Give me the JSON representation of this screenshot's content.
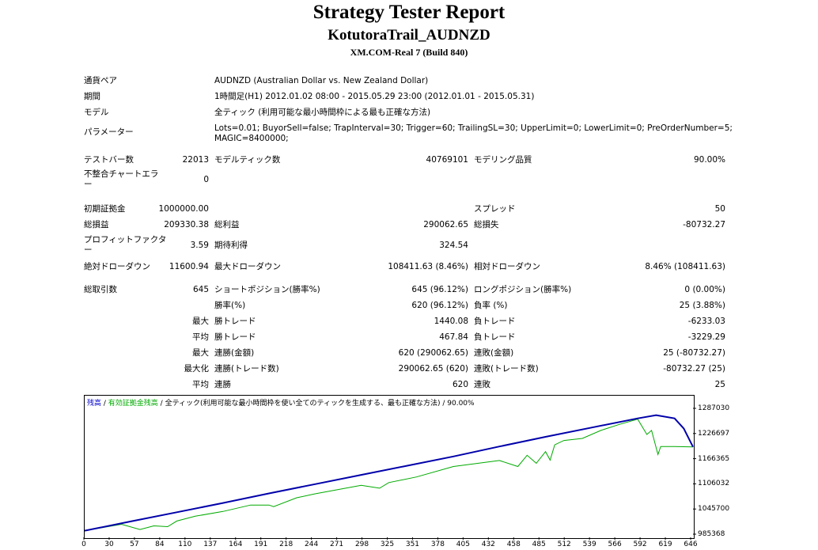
{
  "header": {
    "title": "Strategy Tester Report",
    "ea_name": "KotutoraTrail_AUDNZD",
    "server": "XM.COM-Real 7 (Build 840)"
  },
  "settings": {
    "symbol_label": "通貨ペア",
    "symbol_value": "AUDNZD (Australian Dollar vs. New Zealand Dollar)",
    "period_label": "期間",
    "period_value": "1時間足(H1) 2012.01.02 08:00 - 2015.05.29 23:00 (2012.01.01 - 2015.05.31)",
    "model_label": "モデル",
    "model_value": "全ティック (利用可能な最小時間枠による最も正確な方法)",
    "params_label": "パラメーター",
    "params_line1": "Lots=0.01; BuyorSell=false; TrapInterval=30; Trigger=60; TrailingSL=30; UpperLimit=0; LowerLimit=0; PreOrderNumber=5;",
    "params_line2": "MAGIC=8400000;"
  },
  "stats": {
    "bars_label": "テストバー数",
    "bars_value": "22013",
    "ticks_label": "モデルティック数",
    "ticks_value": "40769101",
    "quality_label": "モデリング品質",
    "quality_value": "90.00%",
    "mismatch_label1": "不整合チャートエラ",
    "mismatch_label2": "ー",
    "mismatch_value": "0",
    "deposit_label": "初期証拠金",
    "deposit_value": "1000000.00",
    "spread_label": "スプレッド",
    "spread_value": "50",
    "net_label": "総損益",
    "net_value": "209330.38",
    "gross_profit_label": "総利益",
    "gross_profit_value": "290062.65",
    "gross_loss_label": "総損失",
    "gross_loss_value": "-80732.27",
    "pf_label1": "プロフィットファクタ",
    "pf_label2": "ー",
    "pf_value": "3.59",
    "expected_label": "期待利得",
    "expected_value": "324.54",
    "abs_dd_label": "絶対ドローダウン",
    "abs_dd_value": "11600.94",
    "max_dd_label": "最大ドローダウン",
    "max_dd_value": "108411.63 (8.46%)",
    "rel_dd_label": "相対ドローダウン",
    "rel_dd_value": "8.46% (108411.63)",
    "trades_label": "総取引数",
    "trades_value": "645",
    "short_label": "ショートポジション(勝率%)",
    "short_value": "645 (96.12%)",
    "long_label": "ロングポジション(勝率%)",
    "long_value": "0 (0.00%)",
    "win_rate_label": "勝率(%)",
    "win_rate_value": "620 (96.12%)",
    "loss_rate_label": "負率 (%)",
    "loss_rate_value": "25 (3.88%)",
    "max_label": "最大",
    "largest_win_label": "勝トレード",
    "largest_win_value": "1440.08",
    "largest_loss_label": "負トレード",
    "largest_loss_value": "-6233.03",
    "avg_label": "平均",
    "avg_win_label": "勝トレード",
    "avg_win_value": "467.84",
    "avg_loss_label": "負トレード",
    "avg_loss_value": "-3229.29",
    "max_cons_label": "最大",
    "cons_wins_label": "連勝(金額)",
    "cons_wins_value": "620 (290062.65)",
    "cons_losses_label": "連敗(金額)",
    "cons_losses_value": "25 (-80732.27)",
    "maximal_label": "最大化",
    "cons_profit_label": "連勝(トレード数)",
    "cons_profit_value": "290062.65 (620)",
    "cons_loss_label": "連敗(トレード数)",
    "cons_loss_value": "-80732.27 (25)",
    "avg_cons_label": "平均",
    "avg_cons_wins_label": "連勝",
    "avg_cons_wins_value": "620",
    "avg_cons_losses_label": "連敗",
    "avg_cons_losses_value": "25"
  },
  "chart_data": {
    "type": "line",
    "legend": {
      "balance": "残高",
      "sep1": " / ",
      "equity": "有効証拠金残高",
      "sep2": " / ",
      "model": "全ティック(利用可能な最小時間枠を使い全てのティックを生成する、最も正確な方法) / 90.00%"
    },
    "colors": {
      "balance": "#0000aa",
      "equity": "#00aa00"
    },
    "ylim": [
      985368,
      1307000
    ],
    "xlim": [
      0,
      660
    ],
    "y_ticks": [
      "1287030",
      "1226697",
      "1166365",
      "1106032",
      "1045700",
      "985368"
    ],
    "x_ticks": [
      "0",
      "30",
      "57",
      "84",
      "110",
      "137",
      "164",
      "191",
      "218",
      "244",
      "271",
      "298",
      "325",
      "351",
      "378",
      "405",
      "432",
      "458",
      "485",
      "512",
      "539",
      "566",
      "592",
      "619",
      "646"
    ],
    "series": [
      {
        "name": "残高",
        "x": [
          0,
          50,
          100,
          150,
          200,
          250,
          300,
          350,
          400,
          450,
          500,
          550,
          600,
          620,
          640,
          650,
          660
        ],
        "y": [
          1000000,
          1023000,
          1046000,
          1069000,
          1093000,
          1116000,
          1139000,
          1162000,
          1185000,
          1210000,
          1234000,
          1257000,
          1280000,
          1288000,
          1280000,
          1255000,
          1209000
        ]
      },
      {
        "name": "有効証拠金残高",
        "x": [
          0,
          40,
          60,
          75,
          90,
          100,
          120,
          150,
          180,
          200,
          205,
          230,
          250,
          300,
          320,
          330,
          360,
          400,
          450,
          470,
          480,
          490,
          500,
          505,
          510,
          520,
          540,
          560,
          580,
          600,
          610,
          615,
          622,
          625,
          640,
          660
        ],
        "y": [
          1000000,
          1016000,
          1003000,
          1012000,
          1010000,
          1024000,
          1036000,
          1048000,
          1064000,
          1064000,
          1060000,
          1082000,
          1092000,
          1113000,
          1106000,
          1120000,
          1134000,
          1160000,
          1175000,
          1160000,
          1188000,
          1168000,
          1197000,
          1176000,
          1214000,
          1225000,
          1230000,
          1250000,
          1265000,
          1278000,
          1240000,
          1250000,
          1190000,
          1210000,
          1210000,
          1209000
        ]
      }
    ]
  }
}
